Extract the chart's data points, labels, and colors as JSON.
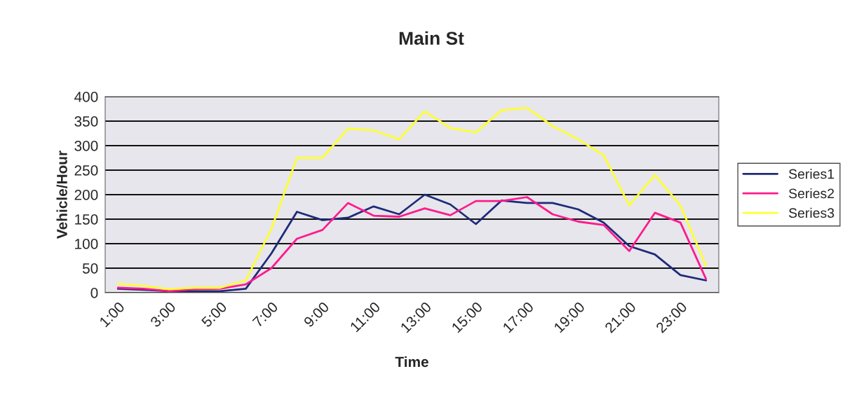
{
  "chart_data": {
    "type": "line",
    "title": "Main St",
    "xlabel": "Time",
    "ylabel": "Vehicle/Hour",
    "categories": [
      "1:00",
      null,
      "3:00",
      null,
      "5:00",
      null,
      "7:00",
      null,
      "9:00",
      null,
      "11:00",
      null,
      "13:00",
      null,
      "15:00",
      null,
      "17:00",
      null,
      "19:00",
      null,
      "21:00",
      null,
      "23:00",
      null
    ],
    "series": [
      {
        "name": "Series1",
        "color": "#1f2a7a",
        "values": [
          8,
          6,
          3,
          3,
          3,
          8,
          80,
          165,
          148,
          153,
          176,
          160,
          200,
          180,
          140,
          188,
          183,
          183,
          170,
          143,
          95,
          78,
          36,
          25
        ]
      },
      {
        "name": "Series2",
        "color": "#ff1a8c",
        "values": [
          10,
          8,
          3,
          7,
          8,
          17,
          50,
          110,
          128,
          183,
          157,
          155,
          172,
          158,
          187,
          187,
          195,
          160,
          145,
          138,
          85,
          163,
          143,
          28
        ]
      },
      {
        "name": "Series3",
        "color": "#ffff33",
        "values": [
          18,
          14,
          7,
          10,
          10,
          25,
          130,
          275,
          275,
          335,
          331,
          313,
          370,
          336,
          327,
          372,
          377,
          340,
          313,
          280,
          178,
          240,
          178,
          55
        ]
      }
    ],
    "ylim": [
      0,
      400
    ],
    "yticks": [
      0,
      50,
      100,
      150,
      200,
      250,
      300,
      350,
      400
    ],
    "grid": "y",
    "legend": "right",
    "marker": "none",
    "line_style": "solid"
  }
}
